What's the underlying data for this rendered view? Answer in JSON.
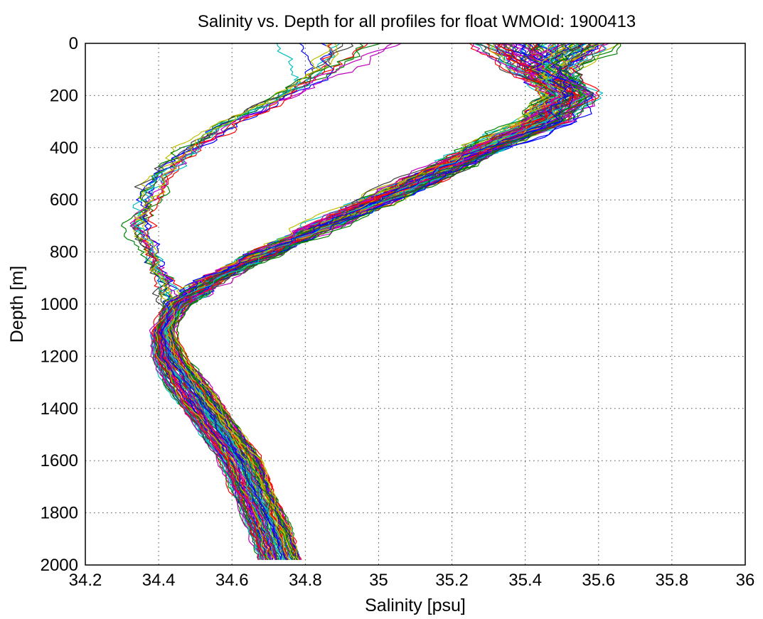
{
  "chart_data": {
    "type": "line",
    "title": "Salinity vs. Depth for all profiles for float WMOId: 1900413",
    "xlabel": "Salinity [psu]",
    "ylabel": "Depth [m]",
    "xlim": [
      34.2,
      36
    ],
    "ylim": [
      0,
      2000
    ],
    "y_reversed": true,
    "grid": true,
    "xticks": [
      "34.2",
      "34.4",
      "34.6",
      "34.8",
      "35",
      "35.2",
      "35.4",
      "35.6",
      "35.8",
      "36"
    ],
    "yticks": [
      "0",
      "200",
      "400",
      "600",
      "800",
      "1000",
      "1200",
      "1400",
      "1600",
      "1800",
      "2000"
    ],
    "series_colors": [
      "#0000ff",
      "#008000",
      "#ff0000",
      "#00bfbf",
      "#bf00bf",
      "#bfbf00",
      "#404040"
    ],
    "profile_count": 120,
    "depth_knots": [
      0,
      100,
      200,
      300,
      400,
      500,
      600,
      700,
      800,
      900,
      1000,
      1100,
      1200,
      1300,
      1400,
      1500,
      1600,
      1700,
      1800,
      1900,
      1980
    ],
    "typical_salinity": [
      35.45,
      35.45,
      35.52,
      35.45,
      35.3,
      35.15,
      35.0,
      34.85,
      34.7,
      34.55,
      34.45,
      34.4,
      34.41,
      34.45,
      34.5,
      34.55,
      34.6,
      34.63,
      34.66,
      34.69,
      34.71
    ],
    "fresh_profile_salinity": [
      34.9,
      34.85,
      34.75,
      34.6,
      34.5,
      34.42,
      34.37,
      34.35,
      34.38,
      34.42,
      34.43,
      34.4,
      34.41,
      34.45,
      34.5,
      34.55,
      34.6,
      34.63,
      34.66,
      34.69,
      34.71
    ]
  }
}
